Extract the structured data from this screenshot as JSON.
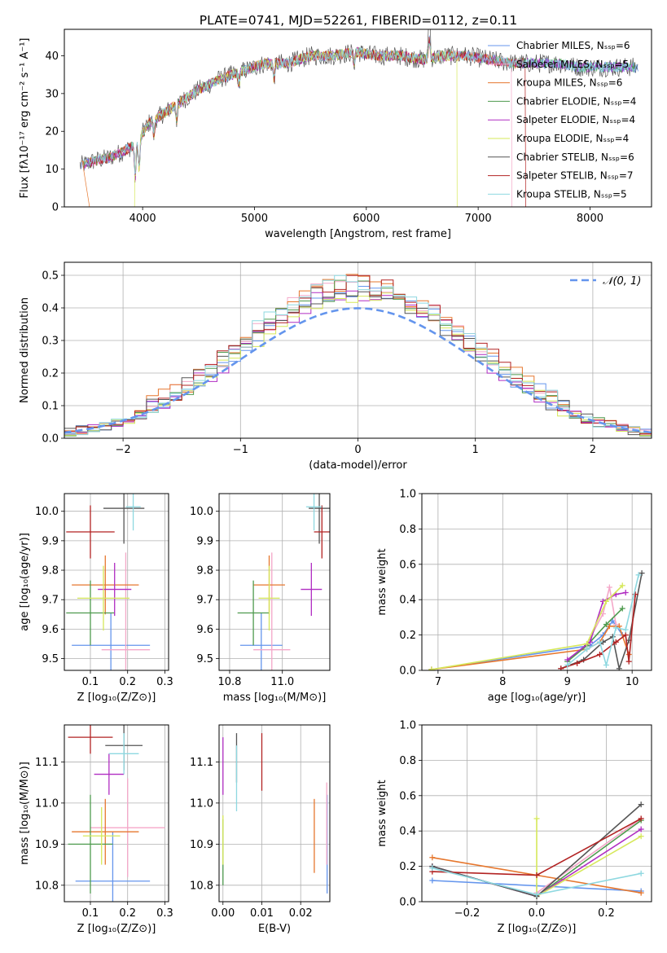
{
  "figure_title": "PLATE=0741, MJD=52261, FIBERID=0112, z=0.11",
  "palette": [
    "#6495ED",
    "#F4A7C8",
    "#E6772E",
    "#4E9A4E",
    "#B02DC2",
    "#D6E85A",
    "#555555",
    "#B22222",
    "#8ED8E0"
  ],
  "chart_data": [
    {
      "id": "spectrum",
      "type": "line",
      "title": "PLATE=0741, MJD=52261, FIBERID=0112, z=0.11",
      "xlabel": "wavelength [Angstrom, rest frame]",
      "ylabel": "Flux [fλ10⁻¹⁷ erg cm⁻² s⁻¹ A⁻¹]",
      "xlim": [
        3300,
        8550
      ],
      "ylim": [
        0,
        47
      ],
      "xticks": [
        4000,
        5000,
        6000,
        7000,
        8000
      ],
      "yticks": [
        0,
        10,
        20,
        30,
        40
      ],
      "grid": false,
      "legend_position": "upper right",
      "continuum_x": [
        3450,
        3550,
        3700,
        3850,
        3950,
        4050,
        4200,
        4350,
        4500,
        4700,
        4900,
        5100,
        5300,
        5500,
        5700,
        5900,
        6100,
        6300,
        6500,
        6700,
        6900,
        7100,
        7300,
        7500,
        7700,
        7900,
        8100,
        8300,
        8430
      ],
      "continuum_y": [
        11,
        12,
        13,
        15,
        17,
        22,
        25,
        28,
        31,
        34,
        36,
        38,
        38,
        40,
        40,
        41,
        40,
        40,
        39,
        40,
        40,
        39,
        38,
        38,
        38,
        37,
        37,
        37,
        37
      ],
      "legend": [
        {
          "label": "Chabrier MILES, Nₛₛₚ=6",
          "color": "#6495ED"
        },
        {
          "label": "Salpeter MILES, Nₛₛₚ=5",
          "color": "#F4A7C8"
        },
        {
          "label": "Kroupa MILES, Nₛₛₚ=6",
          "color": "#E6772E"
        },
        {
          "label": "Chabrier ELODIE, Nₛₛₚ=4",
          "color": "#4E9A4E"
        },
        {
          "label": "Salpeter ELODIE, Nₛₛₚ=4",
          "color": "#B02DC2"
        },
        {
          "label": "Kroupa ELODIE, Nₛₛₚ=4",
          "color": "#D6E85A"
        },
        {
          "label": "Chabrier STELIB, Nₛₛₚ=6",
          "color": "#555555"
        },
        {
          "label": "Salpeter STELIB, Nₛₛₚ=7",
          "color": "#B22222"
        },
        {
          "label": "Kroupa STELIB, Nₛₛₚ=5",
          "color": "#8ED8E0"
        }
      ]
    },
    {
      "id": "residuals",
      "type": "histogram",
      "xlabel": "(data-model)/error",
      "ylabel": "Normed distribution",
      "xlim": [
        -2.5,
        2.5
      ],
      "ylim": [
        0,
        0.54
      ],
      "xticks": [
        -2,
        -1,
        0,
        1,
        2
      ],
      "yticks": [
        0.0,
        0.1,
        0.2,
        0.3,
        0.4,
        0.5
      ],
      "grid": true,
      "bin_width": 0.1,
      "legend": [
        {
          "label": "𝒩(0, 1)",
          "color": "#6495ED",
          "style": "dashed"
        }
      ],
      "legend_position": "upper right",
      "gaussian": {
        "mu": 0,
        "sigma": 1
      }
    },
    {
      "id": "age_vs_Z",
      "type": "errorbar",
      "xlabel": "Z [log₁₀(Z/Z⊙)]",
      "ylabel": "age  [log₁₀(age/yr)]",
      "xlim": [
        0.03,
        0.31
      ],
      "ylim": [
        9.46,
        10.06
      ],
      "xticks": [
        0.1,
        0.2,
        0.3
      ],
      "yticks": [
        9.5,
        9.6,
        9.7,
        9.8,
        9.9,
        10.0
      ],
      "grid": true,
      "points": [
        {
          "x": 0.155,
          "y": 9.545,
          "xerr": 0.105,
          "yerr": 0.11,
          "color": "#6495ED"
        },
        {
          "x": 0.195,
          "y": 9.53,
          "xerr": 0.065,
          "yerr": 0.33,
          "color": "#F4A7C8"
        },
        {
          "x": 0.14,
          "y": 9.75,
          "xerr": 0.09,
          "yerr": 0.1,
          "color": "#E6772E"
        },
        {
          "x": 0.1,
          "y": 9.655,
          "xerr": 0.065,
          "yerr": 0.11,
          "color": "#4E9A4E"
        },
        {
          "x": 0.165,
          "y": 9.735,
          "xerr": 0.045,
          "yerr": 0.09,
          "color": "#B02DC2"
        },
        {
          "x": 0.135,
          "y": 9.705,
          "xerr": 0.07,
          "yerr": 0.11,
          "color": "#D6E85A"
        },
        {
          "x": 0.19,
          "y": 10.01,
          "xerr": 0.055,
          "yerr": 0.12,
          "color": "#555555"
        },
        {
          "x": 0.1,
          "y": 9.93,
          "xerr": 0.065,
          "yerr": 0.09,
          "color": "#B22222"
        },
        {
          "x": 0.215,
          "y": 10.015,
          "xerr": 0.02,
          "yerr": 0.08,
          "color": "#8ED8E0"
        }
      ]
    },
    {
      "id": "age_vs_mass",
      "type": "errorbar",
      "xlabel": "mass [log₁₀(M/M⊙)]",
      "ylabel": "",
      "xlim": [
        10.76,
        11.18
      ],
      "ylim": [
        9.46,
        10.06
      ],
      "xticks": [
        10.8,
        11.0
      ],
      "yticks": [
        9.5,
        9.6,
        9.7,
        9.8,
        9.9,
        10.0
      ],
      "grid": true,
      "points": [
        {
          "x": 10.92,
          "y": 9.545,
          "xerr": 0.08,
          "yerr": 0.11,
          "color": "#6495ED"
        },
        {
          "x": 10.96,
          "y": 9.53,
          "xerr": 0.07,
          "yerr": 0.33,
          "color": "#F4A7C8"
        },
        {
          "x": 10.95,
          "y": 9.75,
          "xerr": 0.06,
          "yerr": 0.1,
          "color": "#E6772E"
        },
        {
          "x": 10.89,
          "y": 9.655,
          "xerr": 0.06,
          "yerr": 0.11,
          "color": "#4E9A4E"
        },
        {
          "x": 11.11,
          "y": 9.735,
          "xerr": 0.04,
          "yerr": 0.09,
          "color": "#B02DC2"
        },
        {
          "x": 10.95,
          "y": 9.705,
          "xerr": 0.04,
          "yerr": 0.11,
          "color": "#D6E85A"
        },
        {
          "x": 11.14,
          "y": 10.01,
          "xerr": 0.04,
          "yerr": 0.12,
          "color": "#555555"
        },
        {
          "x": 11.15,
          "y": 9.93,
          "xerr": 0.03,
          "yerr": 0.09,
          "color": "#B22222"
        },
        {
          "x": 11.12,
          "y": 10.015,
          "xerr": 0.03,
          "yerr": 0.08,
          "color": "#8ED8E0"
        }
      ]
    },
    {
      "id": "weight_vs_age",
      "type": "line",
      "xlabel": "age  [log₁₀(age/yr)]",
      "ylabel": "mass weight",
      "xlim": [
        6.75,
        10.3
      ],
      "ylim": [
        0,
        1.0
      ],
      "xticks": [
        7,
        8,
        9,
        10
      ],
      "yticks": [
        0.0,
        0.2,
        0.4,
        0.6,
        0.8,
        1.0
      ],
      "grid": true,
      "series": [
        {
          "color": "#6495ED",
          "x": [
            6.9,
            9.35,
            9.55,
            9.7,
            9.85
          ],
          "y": [
            0.005,
            0.14,
            0.2,
            0.28,
            0.2
          ]
        },
        {
          "color": "#F4A7C8",
          "x": [
            9.0,
            9.3,
            9.55,
            9.65,
            9.75
          ],
          "y": [
            0.05,
            0.15,
            0.32,
            0.47,
            0.26
          ]
        },
        {
          "color": "#E6772E",
          "x": [
            6.9,
            9.3,
            9.5,
            9.65,
            9.8,
            9.95
          ],
          "y": [
            0.005,
            0.12,
            0.16,
            0.25,
            0.25,
            0.09
          ]
        },
        {
          "color": "#4E9A4E",
          "x": [
            9.0,
            9.3,
            9.6,
            9.85
          ],
          "y": [
            0.05,
            0.14,
            0.26,
            0.35
          ]
        },
        {
          "color": "#B02DC2",
          "x": [
            9.0,
            9.35,
            9.55,
            9.75,
            9.9
          ],
          "y": [
            0.06,
            0.16,
            0.39,
            0.43,
            0.44
          ]
        },
        {
          "color": "#D6E85A",
          "x": [
            6.9,
            9.3,
            9.6,
            9.85
          ],
          "y": [
            0.005,
            0.15,
            0.39,
            0.48
          ]
        },
        {
          "color": "#555555",
          "x": [
            8.9,
            9.25,
            9.55,
            9.7,
            9.8,
            9.95,
            10.15
          ],
          "y": [
            0.01,
            0.06,
            0.16,
            0.19,
            0.01,
            0.17,
            0.55
          ]
        },
        {
          "color": "#B22222",
          "x": [
            8.9,
            9.15,
            9.5,
            9.75,
            9.9,
            9.95,
            10.05
          ],
          "y": [
            0.01,
            0.04,
            0.09,
            0.16,
            0.2,
            0.05,
            0.43
          ]
        },
        {
          "color": "#8ED8E0",
          "x": [
            9.0,
            9.3,
            9.5,
            9.6,
            9.75,
            9.9,
            10.1
          ],
          "y": [
            0.03,
            0.12,
            0.16,
            0.03,
            0.24,
            0.23,
            0.54
          ]
        }
      ]
    },
    {
      "id": "mass_vs_Z",
      "type": "errorbar",
      "xlabel": "Z [log₁₀(Z/Z⊙)]",
      "ylabel": "mass [log₁₀(M/M⊙)]",
      "xlim": [
        0.03,
        0.31
      ],
      "ylim": [
        10.76,
        11.19
      ],
      "xticks": [
        0.1,
        0.2,
        0.3
      ],
      "yticks": [
        10.8,
        10.9,
        11.0,
        11.1
      ],
      "grid": true,
      "points": [
        {
          "x": 0.16,
          "y": 10.81,
          "xerr": 0.1,
          "yerr": 0.12,
          "color": "#6495ED"
        },
        {
          "x": 0.2,
          "y": 10.94,
          "xerr": 0.1,
          "yerr": 0.12,
          "color": "#F4A7C8"
        },
        {
          "x": 0.14,
          "y": 10.93,
          "xerr": 0.09,
          "yerr": 0.08,
          "color": "#E6772E"
        },
        {
          "x": 0.1,
          "y": 10.9,
          "xerr": 0.06,
          "yerr": 0.12,
          "color": "#4E9A4E"
        },
        {
          "x": 0.15,
          "y": 11.07,
          "xerr": 0.04,
          "yerr": 0.05,
          "color": "#B02DC2"
        },
        {
          "x": 0.13,
          "y": 10.92,
          "xerr": 0.05,
          "yerr": 0.07,
          "color": "#D6E85A"
        },
        {
          "x": 0.19,
          "y": 11.14,
          "xerr": 0.05,
          "yerr": 0.06,
          "color": "#555555"
        },
        {
          "x": 0.1,
          "y": 11.16,
          "xerr": 0.06,
          "yerr": 0.04,
          "color": "#B22222"
        },
        {
          "x": 0.19,
          "y": 11.12,
          "xerr": 0.04,
          "yerr": 0.05,
          "color": "#8ED8E0"
        }
      ]
    },
    {
      "id": "mass_vs_ebv",
      "type": "errorbar",
      "xlabel": "E(B-V)",
      "ylabel": "",
      "xlim": [
        -0.001,
        0.0275
      ],
      "ylim": [
        10.76,
        11.19
      ],
      "xticks": [
        0.0,
        0.01,
        0.02
      ],
      "yticks": [
        10.8,
        10.9,
        11.0,
        11.1
      ],
      "grid": true,
      "points": [
        {
          "x": 0.0268,
          "y": 10.9,
          "xerr": 0,
          "yerr": 0.12,
          "color": "#6495ED"
        },
        {
          "x": 0.0267,
          "y": 10.95,
          "xerr": 0,
          "yerr": 0.1,
          "color": "#F4A7C8"
        },
        {
          "x": 0.0235,
          "y": 10.92,
          "xerr": 0,
          "yerr": 0.09,
          "color": "#E6772E"
        },
        {
          "x": 0.0,
          "y": 10.88,
          "xerr": 0,
          "yerr": 0.08,
          "color": "#4E9A4E"
        },
        {
          "x": 0.0,
          "y": 11.09,
          "xerr": 0,
          "yerr": 0.07,
          "color": "#B02DC2"
        },
        {
          "x": 0.0,
          "y": 10.91,
          "xerr": 0,
          "yerr": 0.06,
          "color": "#D6E85A"
        },
        {
          "x": 0.0035,
          "y": 11.11,
          "xerr": 0,
          "yerr": 0.06,
          "color": "#555555"
        },
        {
          "x": 0.01,
          "y": 11.1,
          "xerr": 0,
          "yerr": 0.07,
          "color": "#B22222"
        },
        {
          "x": 0.0035,
          "y": 11.06,
          "xerr": 0,
          "yerr": 0.08,
          "color": "#8ED8E0"
        }
      ]
    },
    {
      "id": "weight_vs_Z",
      "type": "line",
      "xlabel": "Z [log₁₀(Z/Z⊙)]",
      "ylabel": "mass weight",
      "xlim": [
        -0.33,
        0.33
      ],
      "ylim": [
        0,
        1.0
      ],
      "xticks": [
        -0.2,
        0.0,
        0.2
      ],
      "yticks": [
        0.0,
        0.2,
        0.4,
        0.6,
        0.8,
        1.0
      ],
      "grid": true,
      "series": [
        {
          "color": "#6495ED",
          "x": [
            -0.3,
            0.0,
            0.3
          ],
          "y": [
            0.12,
            0.09,
            0.06
          ]
        },
        {
          "color": "#F4A7C8",
          "x": [
            0.0,
            0.3
          ],
          "y": [
            0.05,
            0.47
          ]
        },
        {
          "color": "#E6772E",
          "x": [
            -0.3,
            0.0,
            0.3
          ],
          "y": [
            0.25,
            0.15,
            0.05
          ]
        },
        {
          "color": "#4E9A4E",
          "x": [
            -0.3,
            0.0,
            0.3
          ],
          "y": [
            0.2,
            0.03,
            0.46
          ]
        },
        {
          "color": "#B02DC2",
          "x": [
            -0.3,
            0.0,
            0.3
          ],
          "y": [
            0.2,
            0.03,
            0.41
          ]
        },
        {
          "color": "#D6E85A",
          "x": [
            0.0,
            0.0,
            0.3
          ],
          "y": [
            0.47,
            0.03,
            0.37
          ]
        },
        {
          "color": "#555555",
          "x": [
            -0.3,
            0.0,
            0.3
          ],
          "y": [
            0.2,
            0.03,
            0.55
          ]
        },
        {
          "color": "#B22222",
          "x": [
            -0.3,
            0.0,
            0.3
          ],
          "y": [
            0.17,
            0.15,
            0.47
          ]
        },
        {
          "color": "#8ED8E0",
          "x": [
            -0.3,
            0.0,
            0.3
          ],
          "y": [
            0.19,
            0.04,
            0.16
          ]
        }
      ]
    }
  ]
}
